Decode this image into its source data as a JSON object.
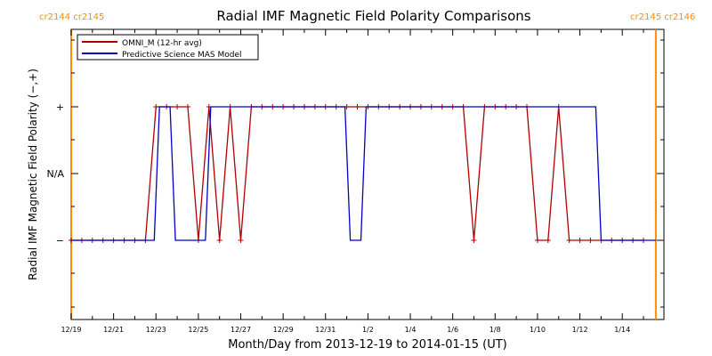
{
  "chart_data": {
    "type": "line",
    "title": "Radial IMF Magnetic Field Polarity Comparisons",
    "xlabel": "Month/Day from 2013-12-19 to 2014-01-15 (UT)",
    "ylabel": "Radial IMF Magnetic Field Polarity (−,+)",
    "xlim": [
      "2013-12-19",
      "2014-01-15"
    ],
    "x_ticks": [
      "12/19",
      "12/21",
      "12/23",
      "12/25",
      "12/27",
      "12/29",
      "12/31",
      "1/2",
      "1/4",
      "1/6",
      "1/8",
      "1/10",
      "1/12",
      "1/14"
    ],
    "y_ticks": [
      "+",
      "N/A",
      "−"
    ],
    "grid": false,
    "legend": "top-left",
    "carrington_labels": {
      "left": "cr2144 cr2145",
      "right": "cr2145 cr2146"
    },
    "carrington_boundaries": [
      "2013-12-19T00:00",
      "2014-01-15T14:00"
    ],
    "series": [
      {
        "name": "OMNI_M (12-hr avg)",
        "color": "#b00000",
        "x": [
          "2013-12-19T00:00",
          "2013-12-19T12:00",
          "2013-12-20T00:00",
          "2013-12-20T12:00",
          "2013-12-21T00:00",
          "2013-12-21T12:00",
          "2013-12-22T00:00",
          "2013-12-22T12:00",
          "2013-12-23T00:00",
          "2013-12-23T12:00",
          "2013-12-24T00:00",
          "2013-12-24T12:00",
          "2013-12-25T00:00",
          "2013-12-25T12:00",
          "2013-12-26T00:00",
          "2013-12-26T12:00",
          "2013-12-27T00:00",
          "2013-12-27T12:00",
          "2013-12-28T00:00",
          "2013-12-28T12:00",
          "2013-12-29T00:00",
          "2013-12-29T12:00",
          "2013-12-30T00:00",
          "2013-12-30T12:00",
          "2013-12-31T00:00",
          "2013-12-31T12:00",
          "2014-01-01T00:00",
          "2014-01-01T12:00",
          "2014-01-02T00:00",
          "2014-01-02T12:00",
          "2014-01-03T00:00",
          "2014-01-03T12:00",
          "2014-01-04T00:00",
          "2014-01-04T12:00",
          "2014-01-05T00:00",
          "2014-01-05T12:00",
          "2014-01-06T00:00",
          "2014-01-06T12:00",
          "2014-01-07T00:00",
          "2014-01-07T12:00",
          "2014-01-08T00:00",
          "2014-01-08T12:00",
          "2014-01-09T00:00",
          "2014-01-09T12:00",
          "2014-01-10T00:00",
          "2014-01-10T12:00",
          "2014-01-11T00:00",
          "2014-01-11T12:00",
          "2014-01-12T00:00",
          "2014-01-12T12:00",
          "2014-01-13T00:00",
          "2014-01-13T12:00",
          "2014-01-14T00:00",
          "2014-01-14T12:00",
          "2014-01-15T00:00"
        ],
        "y": [
          "-",
          "-",
          "-",
          "-",
          "-",
          "-",
          "-",
          "-",
          "+",
          "+",
          "+",
          "+",
          "-",
          "+",
          "-",
          "+",
          "-",
          "+",
          "+",
          "+",
          "+",
          "+",
          "+",
          "+",
          "+",
          "+",
          "+",
          "+",
          "+",
          "+",
          "+",
          "+",
          "+",
          "+",
          "+",
          "+",
          "+",
          "+",
          "-",
          "+",
          "+",
          "+",
          "+",
          "+",
          "-",
          "-",
          "+",
          "-",
          "-",
          "-",
          "-",
          "-",
          "-",
          "-",
          "-"
        ]
      },
      {
        "name": "Predictive Science MAS Model",
        "color": "#0000c8",
        "x": [
          "2013-12-19T00:00",
          "2013-12-22T22:00",
          "2013-12-23T04:00",
          "2013-12-23T16:00",
          "2013-12-23T22:00",
          "2013-12-25T08:00",
          "2013-12-25T14:00",
          "2013-12-31T22:00",
          "2014-01-01T04:00",
          "2014-01-01T16:00",
          "2014-01-01T22:00",
          "2014-01-12T18:00",
          "2014-01-13T00:00",
          "2014-01-15T14:00"
        ],
        "y": [
          "-",
          "-",
          "+",
          "+",
          "-",
          "-",
          "+",
          "+",
          "-",
          "-",
          "+",
          "+",
          "-",
          "-"
        ]
      }
    ]
  }
}
